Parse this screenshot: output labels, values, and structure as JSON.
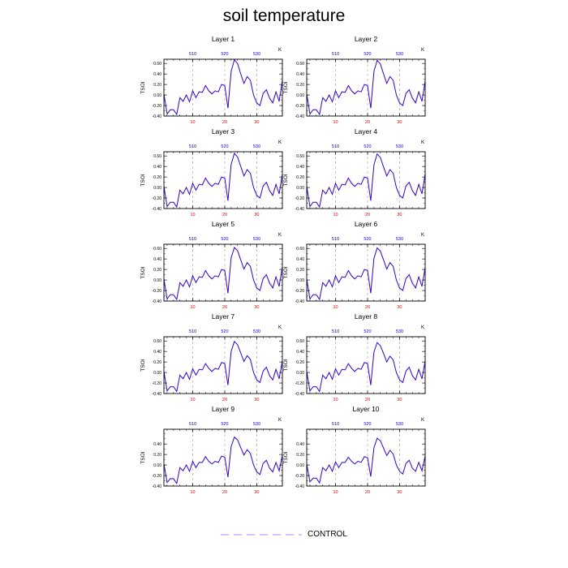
{
  "title": "soil temperature",
  "legend": {
    "label": "CONTROL",
    "line_style": "dashed",
    "line_color": "#cc99ff"
  },
  "colors": {
    "series": "#3300cc",
    "grid": "#999999",
    "bottom_ticks": "#cc0000",
    "top_ticks": "#0000cc"
  },
  "chart_data": {
    "type": "line",
    "layout": "5 rows x 2 columns of panels",
    "ylabel": "TSOI",
    "top_axis_label": "K",
    "xlim": [
      1,
      38
    ],
    "ylim": [
      -0.4,
      0.68
    ],
    "bottom_ticks": [
      10,
      20,
      30
    ],
    "top_ticks": [
      "510",
      "520",
      "530"
    ],
    "ytick_labels_layers_1_8": [
      "-0.40",
      "-0.20",
      "0.00",
      "0.20",
      "0.40",
      "0.60"
    ],
    "ytick_labels_layers_9_10": [
      "-0.40",
      "-0.20",
      "0.00",
      "0.20",
      "0.40"
    ],
    "vertical_grid": "dashed lines at x = 10, 20, 30",
    "x": [
      1,
      2,
      3,
      4,
      5,
      6,
      7,
      8,
      9,
      10,
      11,
      12,
      13,
      14,
      15,
      16,
      17,
      18,
      19,
      20,
      21,
      22,
      23,
      24,
      25,
      26,
      27,
      28,
      29,
      30,
      31,
      32,
      33,
      34,
      35,
      36,
      37,
      38
    ],
    "panels": [
      {
        "title": "Layer 1",
        "values": [
          0.02,
          -0.36,
          -0.28,
          -0.28,
          -0.37,
          -0.05,
          -0.12,
          0.0,
          -0.13,
          0.08,
          -0.05,
          0.06,
          0.05,
          0.18,
          0.08,
          0.02,
          0.08,
          0.06,
          0.2,
          0.18,
          -0.25,
          0.45,
          0.67,
          0.6,
          0.4,
          0.22,
          0.35,
          0.28,
          0.0,
          -0.15,
          -0.2,
          0.03,
          0.1,
          -0.06,
          -0.15,
          0.06,
          -0.12,
          0.28
        ]
      },
      {
        "title": "Layer 2",
        "values": [
          0.02,
          -0.36,
          -0.28,
          -0.28,
          -0.37,
          -0.05,
          -0.12,
          0.0,
          -0.13,
          0.08,
          -0.05,
          0.06,
          0.05,
          0.18,
          0.08,
          0.02,
          0.08,
          0.06,
          0.2,
          0.18,
          -0.25,
          0.45,
          0.66,
          0.59,
          0.4,
          0.22,
          0.35,
          0.28,
          0.0,
          -0.15,
          -0.2,
          0.03,
          0.1,
          -0.06,
          -0.15,
          0.06,
          -0.12,
          0.27
        ]
      },
      {
        "title": "Layer 3",
        "values": [
          0.02,
          -0.36,
          -0.28,
          -0.28,
          -0.37,
          -0.05,
          -0.12,
          0.0,
          -0.13,
          0.08,
          -0.05,
          0.06,
          0.05,
          0.18,
          0.08,
          0.02,
          0.08,
          0.06,
          0.2,
          0.18,
          -0.25,
          0.44,
          0.65,
          0.58,
          0.4,
          0.22,
          0.34,
          0.27,
          0.0,
          -0.15,
          -0.2,
          0.03,
          0.1,
          -0.06,
          -0.15,
          0.06,
          -0.12,
          0.26
        ]
      },
      {
        "title": "Layer 4",
        "values": [
          0.02,
          -0.36,
          -0.28,
          -0.28,
          -0.37,
          -0.05,
          -0.12,
          0.0,
          -0.13,
          0.08,
          -0.05,
          0.06,
          0.05,
          0.18,
          0.08,
          0.02,
          0.08,
          0.06,
          0.2,
          0.18,
          -0.25,
          0.43,
          0.64,
          0.57,
          0.39,
          0.22,
          0.34,
          0.27,
          0.0,
          -0.15,
          -0.2,
          0.03,
          0.1,
          -0.06,
          -0.15,
          0.06,
          -0.12,
          0.26
        ]
      },
      {
        "title": "Layer 5",
        "values": [
          0.02,
          -0.36,
          -0.28,
          -0.28,
          -0.37,
          -0.05,
          -0.12,
          0.0,
          -0.13,
          0.08,
          -0.05,
          0.06,
          0.05,
          0.18,
          0.08,
          0.02,
          0.08,
          0.06,
          0.2,
          0.18,
          -0.25,
          0.42,
          0.62,
          0.56,
          0.38,
          0.21,
          0.33,
          0.26,
          0.0,
          -0.15,
          -0.2,
          0.03,
          0.1,
          -0.06,
          -0.15,
          0.06,
          -0.12,
          0.25
        ]
      },
      {
        "title": "Layer 6",
        "values": [
          0.02,
          -0.36,
          -0.28,
          -0.28,
          -0.37,
          -0.05,
          -0.12,
          0.0,
          -0.13,
          0.08,
          -0.05,
          0.06,
          0.05,
          0.18,
          0.08,
          0.02,
          0.08,
          0.06,
          0.2,
          0.18,
          -0.25,
          0.41,
          0.61,
          0.55,
          0.38,
          0.21,
          0.33,
          0.26,
          0.0,
          -0.15,
          -0.2,
          0.03,
          0.1,
          -0.06,
          -0.15,
          0.06,
          -0.12,
          0.24
        ]
      },
      {
        "title": "Layer 7",
        "values": [
          0.02,
          -0.35,
          -0.27,
          -0.27,
          -0.36,
          -0.05,
          -0.12,
          0.0,
          -0.13,
          0.07,
          -0.05,
          0.06,
          0.05,
          0.17,
          0.08,
          0.02,
          0.08,
          0.06,
          0.19,
          0.17,
          -0.24,
          0.4,
          0.59,
          0.53,
          0.37,
          0.21,
          0.32,
          0.25,
          0.0,
          -0.14,
          -0.19,
          0.03,
          0.1,
          -0.06,
          -0.14,
          0.06,
          -0.12,
          0.23
        ]
      },
      {
        "title": "Layer 8",
        "values": [
          0.02,
          -0.35,
          -0.27,
          -0.27,
          -0.36,
          -0.05,
          -0.12,
          0.0,
          -0.13,
          0.07,
          -0.05,
          0.06,
          0.05,
          0.17,
          0.08,
          0.02,
          0.08,
          0.06,
          0.19,
          0.17,
          -0.24,
          0.39,
          0.57,
          0.51,
          0.36,
          0.2,
          0.31,
          0.24,
          0.0,
          -0.14,
          -0.19,
          0.03,
          0.1,
          -0.06,
          -0.14,
          0.06,
          -0.12,
          0.22
        ]
      },
      {
        "title": "Layer 9",
        "values": [
          0.02,
          -0.33,
          -0.26,
          -0.26,
          -0.35,
          -0.05,
          -0.11,
          0.0,
          -0.12,
          0.07,
          -0.05,
          0.05,
          0.05,
          0.16,
          0.07,
          0.02,
          0.07,
          0.05,
          0.17,
          0.15,
          -0.23,
          0.35,
          0.53,
          0.48,
          0.33,
          0.19,
          0.29,
          0.22,
          0.0,
          -0.13,
          -0.18,
          0.03,
          0.09,
          -0.06,
          -0.13,
          0.05,
          -0.11,
          0.19
        ]
      },
      {
        "title": "Layer 10",
        "values": [
          0.02,
          -0.32,
          -0.25,
          -0.25,
          -0.34,
          -0.05,
          -0.11,
          0.0,
          -0.12,
          0.06,
          -0.05,
          0.05,
          0.05,
          0.15,
          0.07,
          0.02,
          0.07,
          0.05,
          0.16,
          0.14,
          -0.22,
          0.33,
          0.51,
          0.46,
          0.32,
          0.18,
          0.28,
          0.21,
          0.0,
          -0.12,
          -0.17,
          0.03,
          0.09,
          -0.06,
          -0.12,
          0.05,
          -0.11,
          0.17
        ]
      }
    ]
  }
}
